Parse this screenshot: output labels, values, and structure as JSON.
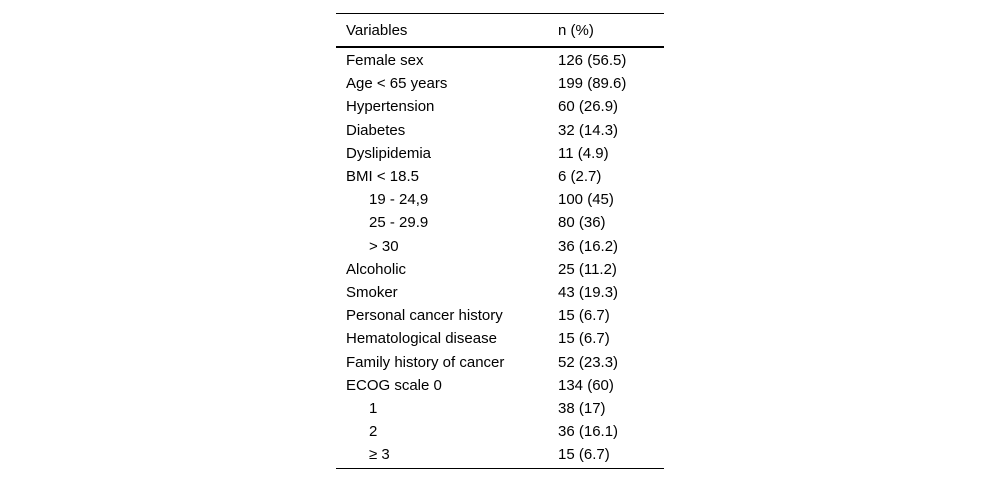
{
  "table": {
    "columns": [
      "Variables",
      "n (%)"
    ],
    "rows": [
      {
        "label": "Female sex",
        "value": "126 (56.5)",
        "indent": false
      },
      {
        "label": "Age < 65 years",
        "value": "199 (89.6)",
        "indent": false
      },
      {
        "label": "Hypertension",
        "value": "60 (26.9)",
        "indent": false
      },
      {
        "label": "Diabetes",
        "value": "32 (14.3)",
        "indent": false
      },
      {
        "label": "Dyslipidemia",
        "value": "11 (4.9)",
        "indent": false
      },
      {
        "label": "BMI < 18.5",
        "value": "6 (2.7)",
        "indent": false
      },
      {
        "label": "19 - 24,9",
        "value": "100 (45)",
        "indent": true
      },
      {
        "label": "25 - 29.9",
        "value": "80 (36)",
        "indent": true
      },
      {
        "label": "> 30",
        "value": "36 (16.2)",
        "indent": true
      },
      {
        "label": "Alcoholic",
        "value": "25 (11.2)",
        "indent": false
      },
      {
        "label": "Smoker",
        "value": "43 (19.3)",
        "indent": false
      },
      {
        "label": "Personal cancer history",
        "value": "15 (6.7)",
        "indent": false
      },
      {
        "label": "Hematological disease",
        "value": "15 (6.7)",
        "indent": false
      },
      {
        "label": "Family history of cancer",
        "value": "52 (23.3)",
        "indent": false
      },
      {
        "label": "ECOG scale 0",
        "value": "134 (60)",
        "indent": false
      },
      {
        "label": "1",
        "value": "38 (17)",
        "indent": true
      },
      {
        "label": "2",
        "value": "36 (16.1)",
        "indent": true
      },
      {
        "label": "≥ 3",
        "value": "15 (6.7)",
        "indent": true
      }
    ]
  },
  "colors": {
    "text": "#000000",
    "rule": "#000000",
    "background": "#ffffff"
  }
}
